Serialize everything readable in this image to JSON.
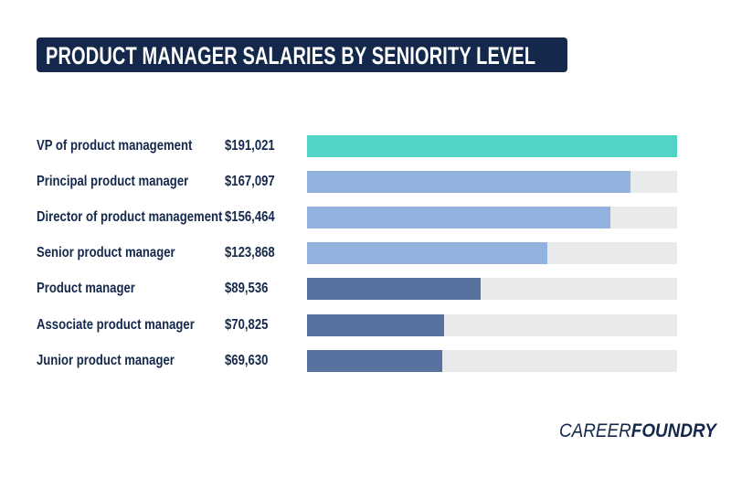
{
  "chart_data": {
    "type": "bar",
    "orientation": "horizontal",
    "title": "PRODUCT MANAGER SALARIES BY SENIORITY LEVEL",
    "categories": [
      "VP of product management",
      "Principal product manager",
      "Director of product management",
      "Senior product manager",
      "Product manager",
      "Associate product manager",
      "Junior product manager"
    ],
    "values": [
      191021,
      167097,
      156464,
      123868,
      89536,
      70825,
      69630
    ],
    "value_labels": [
      "$191,021",
      "$167,097",
      "$156,464",
      "$123,868",
      "$89,536",
      "$70,825",
      "$69,630"
    ],
    "bar_colors": [
      "#52d3c6",
      "#94b2de",
      "#94b2de",
      "#94b2de",
      "#56729f",
      "#56729f",
      "#56729f"
    ],
    "track_color": "#e9eaec",
    "xlim": [
      0,
      191021
    ],
    "grid": false,
    "xlabel": "",
    "ylabel": ""
  },
  "colors": {
    "title_bg": "#14284b",
    "text": "#14284b"
  },
  "logo": {
    "part1": "CAREER",
    "part2": "FOUNDRY"
  }
}
